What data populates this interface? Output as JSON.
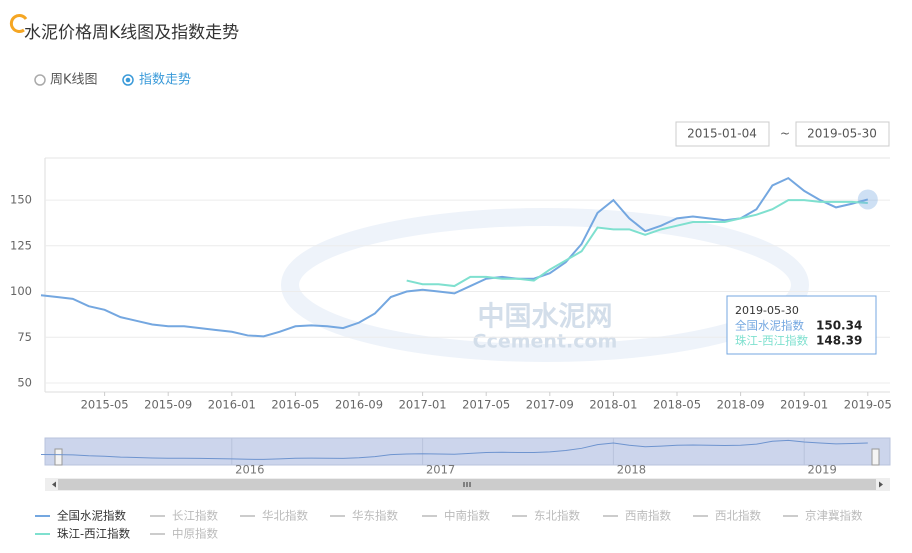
{
  "header": {
    "title": "水泥价格周K线图及指数走势"
  },
  "view_options": [
    {
      "label": "周K线图",
      "selected": false
    },
    {
      "label": "指数走势",
      "selected": true
    }
  ],
  "date_range": {
    "start": "2015-01-04",
    "separator": "~",
    "end": "2019-05-30"
  },
  "chart_data": {
    "type": "line",
    "x": [
      "2015-01",
      "2015-02",
      "2015-03",
      "2015-04",
      "2015-05",
      "2015-06",
      "2015-07",
      "2015-08",
      "2015-09",
      "2015-10",
      "2015-11",
      "2015-12",
      "2016-01",
      "2016-02",
      "2016-03",
      "2016-04",
      "2016-05",
      "2016-06",
      "2016-07",
      "2016-08",
      "2016-09",
      "2016-10",
      "2016-11",
      "2016-12",
      "2017-01",
      "2017-02",
      "2017-03",
      "2017-04",
      "2017-05",
      "2017-06",
      "2017-07",
      "2017-08",
      "2017-09",
      "2017-10",
      "2017-11",
      "2017-12",
      "2018-01",
      "2018-02",
      "2018-03",
      "2018-04",
      "2018-05",
      "2018-06",
      "2018-07",
      "2018-08",
      "2018-09",
      "2018-10",
      "2018-11",
      "2018-12",
      "2019-01",
      "2019-02",
      "2019-03",
      "2019-04",
      "2019-05"
    ],
    "xticks": [
      "2015-05",
      "2015-09",
      "2016-01",
      "2016-05",
      "2016-09",
      "2017-01",
      "2017-05",
      "2017-09",
      "2018-01",
      "2018-05",
      "2018-09",
      "2019-01",
      "2019-05"
    ],
    "ylim": [
      50,
      173
    ],
    "yticks": [
      50,
      75,
      100,
      125,
      150
    ],
    "grid": true,
    "series": [
      {
        "name": "全国水泥指数",
        "color": "#74a7e0",
        "visible": true,
        "values": [
          98,
          97,
          96,
          92,
          90,
          86,
          84,
          82,
          81,
          81,
          80,
          79,
          78,
          76,
          75.5,
          78,
          81,
          81.5,
          81,
          80,
          83,
          88,
          97,
          100,
          101,
          100,
          99,
          103,
          107,
          108,
          107,
          107,
          110,
          116,
          126,
          143,
          150,
          140,
          133,
          136,
          140,
          141,
          140,
          139,
          140,
          145,
          158,
          162,
          155,
          150,
          146,
          148,
          150.34
        ]
      },
      {
        "name": "长江指数",
        "color": "#cccccc",
        "visible": false
      },
      {
        "name": "华北指数",
        "color": "#cccccc",
        "visible": false
      },
      {
        "name": "华东指数",
        "color": "#cccccc",
        "visible": false
      },
      {
        "name": "中南指数",
        "color": "#cccccc",
        "visible": false
      },
      {
        "name": "东北指数",
        "color": "#cccccc",
        "visible": false
      },
      {
        "name": "西南指数",
        "color": "#cccccc",
        "visible": false
      },
      {
        "name": "西北指数",
        "color": "#cccccc",
        "visible": false
      },
      {
        "name": "京津冀指数",
        "color": "#cccccc",
        "visible": false
      },
      {
        "name": "珠江-西江指数",
        "color": "#7fe0cf",
        "visible": true,
        "values": [
          null,
          null,
          null,
          null,
          null,
          null,
          null,
          null,
          null,
          null,
          null,
          null,
          null,
          null,
          null,
          null,
          null,
          null,
          null,
          null,
          null,
          null,
          null,
          106,
          104,
          104,
          103,
          108,
          108,
          107,
          107,
          106,
          112,
          117,
          122,
          135,
          134,
          134,
          131,
          134,
          136,
          138,
          138,
          138,
          140,
          142,
          145,
          150,
          150,
          149,
          149,
          149,
          148.39
        ]
      },
      {
        "name": "中原指数",
        "color": "#cccccc",
        "visible": false
      }
    ],
    "tooltip": {
      "date": "2019-05-30",
      "entries": [
        {
          "series": 0,
          "value": 150.34
        },
        {
          "series": 9,
          "value": 148.39
        }
      ]
    },
    "watermark": {
      "cn": "中国水泥网",
      "en": "Ccement.com"
    },
    "overview_labels": [
      {
        "index": 12,
        "label": "2016"
      },
      {
        "index": 24,
        "label": "2017"
      },
      {
        "index": 36,
        "label": "2018"
      },
      {
        "index": 48,
        "label": "2019"
      }
    ]
  }
}
